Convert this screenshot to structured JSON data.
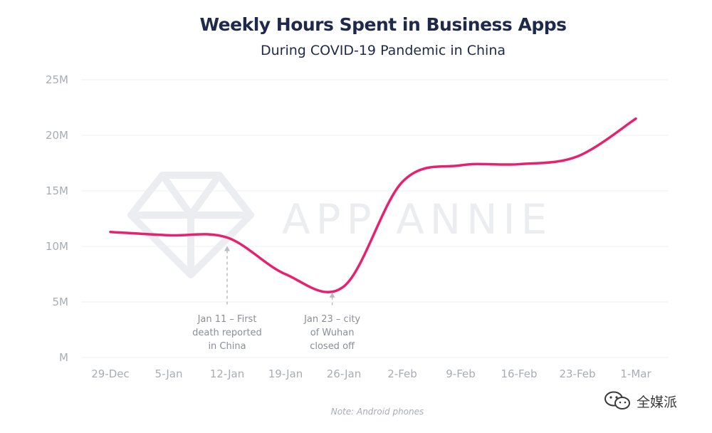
{
  "chart_data": {
    "type": "line",
    "title": "Weekly Hours Spent in Business Apps",
    "subtitle": "During COVID-19 Pandemic in China",
    "xlabel": "",
    "ylabel": "",
    "categories": [
      "29-Dec",
      "5-Jan",
      "12-Jan",
      "19-Jan",
      "26-Jan",
      "2-Feb",
      "9-Feb",
      "16-Feb",
      "23-Feb",
      "1-Mar"
    ],
    "series": [
      {
        "values": [
          11.3,
          11.0,
          10.8,
          7.5,
          6.4,
          15.8,
          17.3,
          17.4,
          18.1,
          21.5
        ]
      }
    ],
    "yticks": [
      "M",
      "5M",
      "10M",
      "15M",
      "20M",
      "25M"
    ],
    "ylim": [
      0,
      25
    ],
    "grid": true,
    "line_color": "#e8206e",
    "annotations": [
      {
        "x": 2,
        "lines": [
          "Jan 11 – First",
          "death reported",
          "in China"
        ]
      },
      {
        "x": 3.8,
        "lines": [
          "Jan 23 – city",
          "of Wuhan",
          "closed off"
        ]
      }
    ],
    "note": "Note: Android phones"
  },
  "watermark": {
    "text": "APP ANNIE",
    "badge_text": "全媒派",
    "badge_icon": "wechat-icon"
  }
}
